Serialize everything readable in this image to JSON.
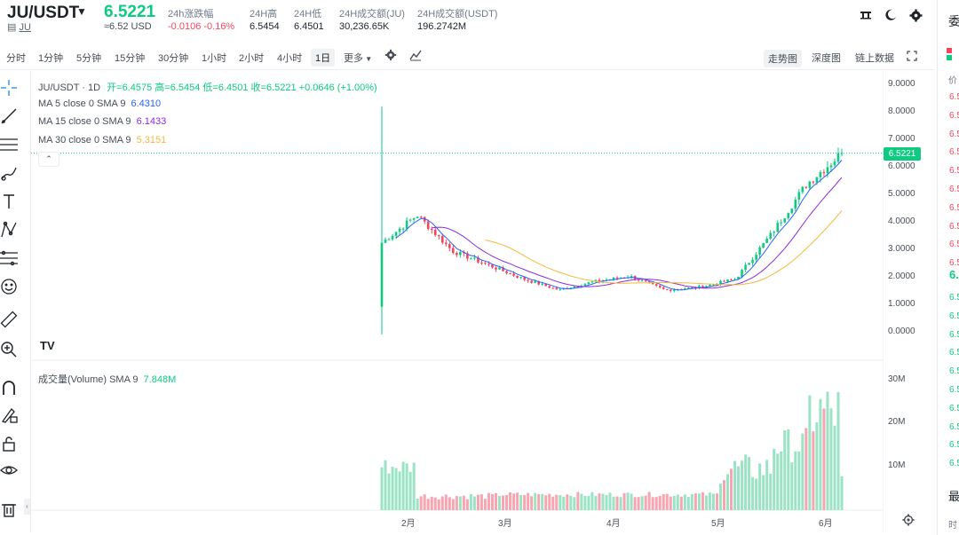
{
  "header": {
    "symbol": "JU/USDT",
    "sub_symbol": "JU",
    "price": "6.5221",
    "usd_price": "≈6.52 USD",
    "stats": [
      {
        "label": "24h涨跌幅",
        "value": "-0.0106  -0.16%"
      },
      {
        "label": "24H高",
        "value": "6.5454"
      },
      {
        "label": "24H低",
        "value": "6.4501"
      },
      {
        "label": "24H成交额(JU)",
        "value": "30,236.65K"
      },
      {
        "label": "24H成交额(USDT)",
        "value": "196.2742M"
      }
    ]
  },
  "toolbar": {
    "intervals": [
      "分时",
      "1分钟",
      "5分钟",
      "15分钟",
      "30分钟",
      "1小时",
      "2小时",
      "4小时",
      "1日",
      "更多"
    ],
    "selected": "1日",
    "views": [
      "走势图",
      "深度图",
      "链上数据"
    ],
    "selected_view": "走势图"
  },
  "legend": {
    "title": "JU/USDT · 1D",
    "ohlc": "开=6.4575  高=6.5454  低=6.4501  收=6.5221  +0.0646 (+1.00%)",
    "ma5_label": "MA 5 close 0 SMA 9",
    "ma5_value": "6.4310",
    "ma15_label": "MA 15 close 0 SMA 9",
    "ma15_value": "6.1433",
    "ma30_label": "MA 30 close 0 SMA 9",
    "ma30_value": "5.3151",
    "volume_label": "成交量(Volume) SMA 9",
    "volume_value": "7.848M"
  },
  "price_axis": [
    "9.0000",
    "8.0000",
    "7.0000",
    "6.0000",
    "5.0000",
    "4.0000",
    "3.0000",
    "2.0000",
    "1.0000",
    "0.0000"
  ],
  "current_price_tag": "6.5221",
  "volume_axis": [
    "30M",
    "20M",
    "10M"
  ],
  "months": [
    "2月",
    "3月",
    "4月",
    "5月",
    "6月"
  ],
  "right_panel": {
    "head": "委",
    "col": "价",
    "asks": [
      "6.5",
      "6.5",
      "6.5",
      "6.5",
      "6.5",
      "6.5",
      "6.5",
      "6.5",
      "6.5",
      "6.5"
    ],
    "mid": "6.",
    "bids": [
      "6.5",
      "6.5",
      "6.5",
      "6.5",
      "6.5",
      "6.5",
      "6.5",
      "6.5",
      "6.5",
      "6.5"
    ],
    "bottom_head": "最",
    "bottom_col": "时"
  },
  "colors": {
    "up": "#0ecb81",
    "down": "#f6465d",
    "ma5": "#2962ff",
    "ma15": "#8e2bdc",
    "ma30": "#f5b83d"
  },
  "chart_data": {
    "type": "candlestick",
    "title": "JU/USDT · 1D",
    "ylim": [
      0,
      9
    ],
    "x_month_labels": [
      "2月",
      "3月",
      "4月",
      "5月",
      "6月"
    ],
    "close_by_week": [
      {
        "w": "late Jan",
        "v": 3.3
      },
      {
        "w": "early Feb",
        "v": 4.3
      },
      {
        "w": "mid Feb",
        "v": 3.0
      },
      {
        "w": "late Feb",
        "v": 2.5
      },
      {
        "w": "early Mar",
        "v": 2.0
      },
      {
        "w": "mid Mar",
        "v": 1.6
      },
      {
        "w": "late Mar",
        "v": 1.9
      },
      {
        "w": "early Apr",
        "v": 2.1
      },
      {
        "w": "mid Apr",
        "v": 1.6
      },
      {
        "w": "late Apr",
        "v": 1.7
      },
      {
        "w": "early May",
        "v": 2.0
      },
      {
        "w": "mid May",
        "v": 3.6
      },
      {
        "w": "late May",
        "v": 5.4
      },
      {
        "w": "early Jun",
        "v": 6.5221
      }
    ],
    "volume_ylim": [
      0,
      30
    ]
  }
}
